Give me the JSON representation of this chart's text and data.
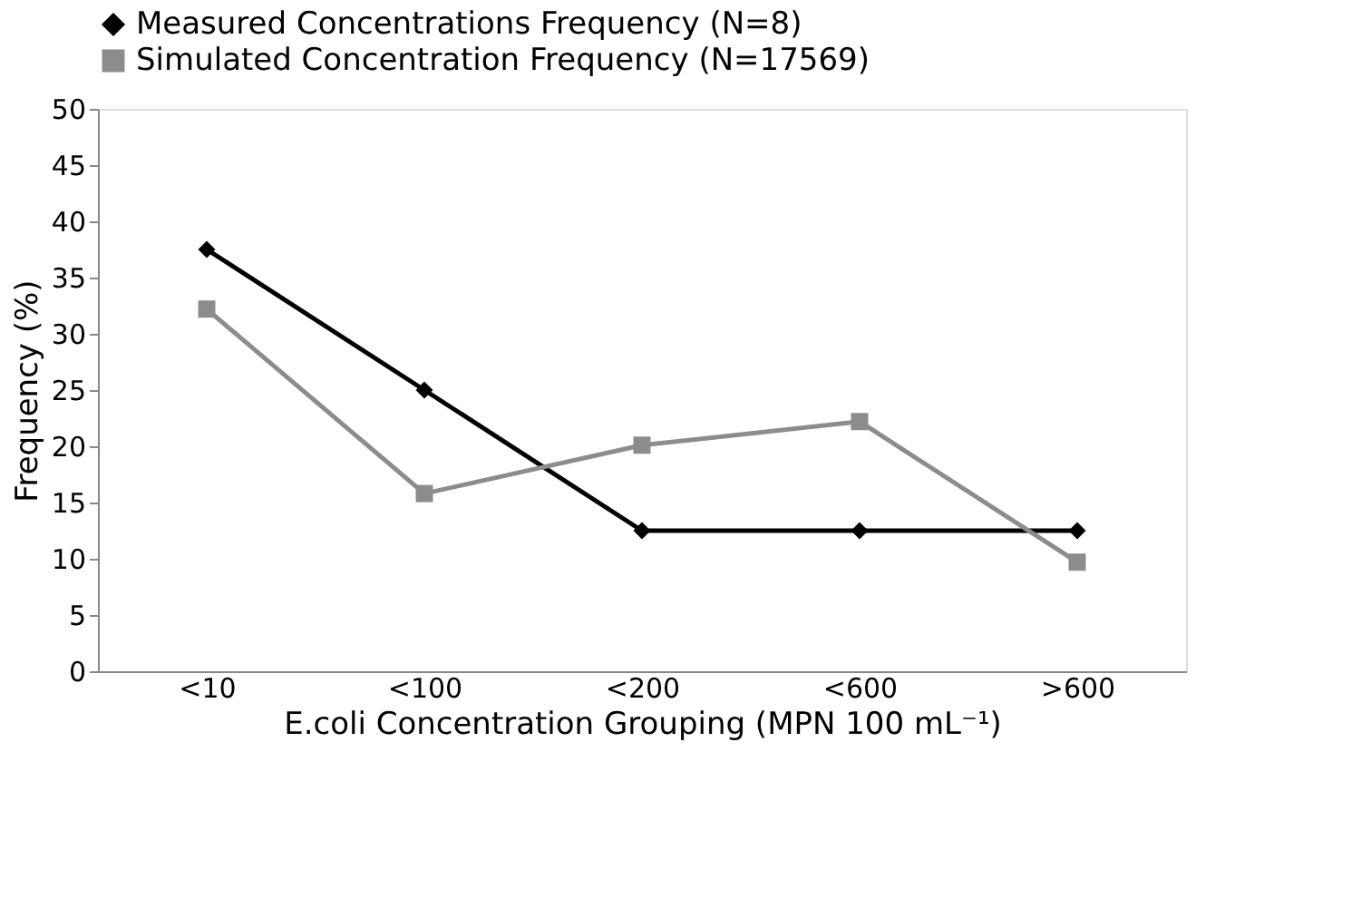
{
  "chart_data": {
    "type": "line",
    "xlabel": "E.coli Concentration Grouping (MPN 100 mL⁻¹)",
    "ylabel": "Frequency (%)",
    "categories": [
      "<10",
      "<100",
      "<200",
      "<600",
      ">600"
    ],
    "series": [
      {
        "name": "Measured Concentrations Frequency (N=8)",
        "color": "#000000",
        "marker": "diamond",
        "values": [
          37.5,
          25,
          12.5,
          12.5,
          12.5
        ]
      },
      {
        "name": "Simulated Concentration Frequency (N=17569)",
        "color": "#8c8c8c",
        "marker": "square",
        "values": [
          32.2,
          15.8,
          20.1,
          22.2,
          9.7
        ]
      }
    ],
    "ylim": [
      0,
      50
    ],
    "yticks": [
      0,
      5,
      10,
      15,
      20,
      25,
      30,
      35,
      40,
      45,
      50
    ],
    "grid": false,
    "legend": "top",
    "line_style": "solid"
  }
}
